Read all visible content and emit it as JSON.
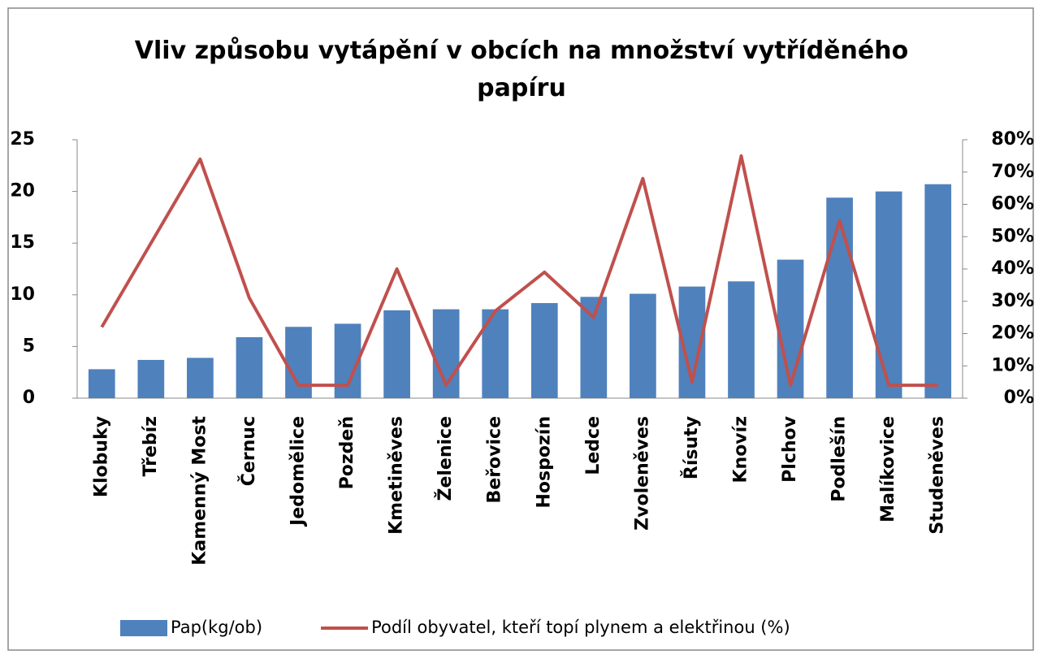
{
  "chart_data": {
    "type": "bar-line",
    "title": "Vliv způsobu vytápění v obcích na množství vytříděného papíru",
    "categories": [
      "Klobuky",
      "Třebíz",
      "Kamenný Most",
      "Černuc",
      "Jedomělice",
      "Pozdeň",
      "Kmetiněves",
      "Želenice",
      "Beřovice",
      "Hospozín",
      "Ledce",
      "Zvoleněves",
      "Řísuty",
      "Knovíz",
      "Plchov",
      "Podlešín",
      "Malíkovice",
      "Studeněves"
    ],
    "series": [
      {
        "name": "Pap(kg/ob)",
        "type": "bar",
        "color": "#4f81bd",
        "values": [
          2.8,
          3.7,
          3.9,
          5.9,
          6.9,
          7.2,
          8.5,
          8.6,
          8.6,
          9.2,
          9.8,
          10.1,
          10.8,
          11.3,
          13.4,
          19.4,
          20,
          20.7
        ]
      },
      {
        "name": "Podíl obyvatel, kteří topí plynem a elektřinou (%)",
        "type": "line",
        "axis": "y2",
        "color": "#c0504d",
        "values": [
          22,
          48,
          74,
          31,
          4,
          4,
          40,
          4,
          27,
          39,
          25,
          68,
          5,
          75,
          4,
          55,
          4,
          4
        ]
      }
    ],
    "ylim": [
      0,
      25
    ],
    "yticks": [
      0,
      5,
      10,
      15,
      20,
      25
    ],
    "y2lim": [
      0,
      80
    ],
    "y2ticks": [
      {
        "value": 0,
        "label": "0%"
      },
      {
        "value": 10,
        "label": "10%"
      },
      {
        "value": 20,
        "label": "20%"
      },
      {
        "value": 30,
        "label": "30%"
      },
      {
        "value": 40,
        "label": "40%"
      },
      {
        "value": 50,
        "label": "50%"
      },
      {
        "value": 60,
        "label": "60%"
      },
      {
        "value": 70,
        "label": "70%"
      },
      {
        "value": 80,
        "label": "80%"
      }
    ],
    "legend": "bottom"
  }
}
